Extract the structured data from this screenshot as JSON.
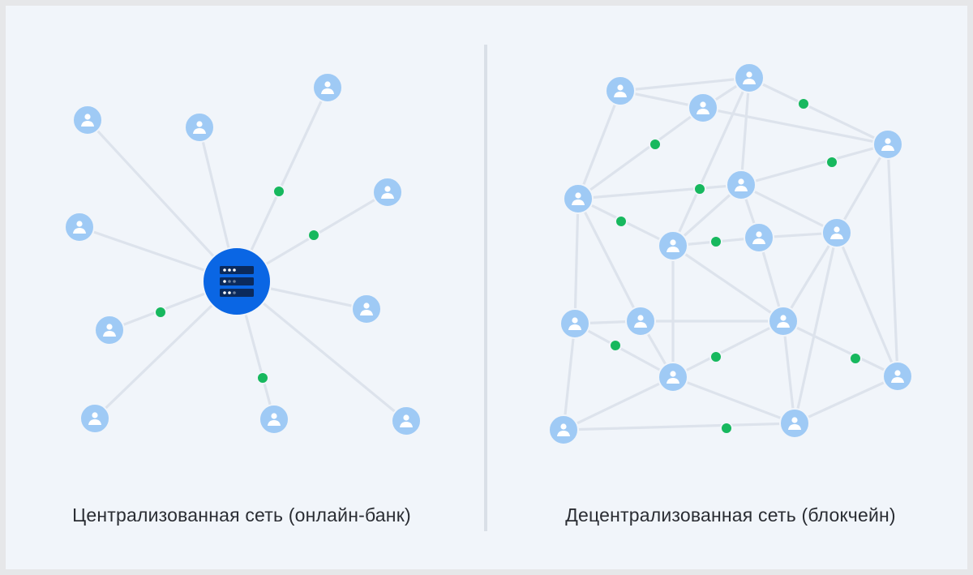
{
  "left_caption": "Централизованная сеть (онлайн-банк)",
  "right_caption": "Децентрализованная сеть (блокчейн)",
  "colors": {
    "background": "#f1f5fa",
    "edge": "#dde3ec",
    "user_node": "#9fcaf5",
    "server_node": "#0a66e4",
    "server_rack": "#0b2a5c",
    "transaction_dot": "#17b85e",
    "divider": "#d9dfe7"
  },
  "icons": {
    "user": "user-icon",
    "server": "server-icon"
  }
}
